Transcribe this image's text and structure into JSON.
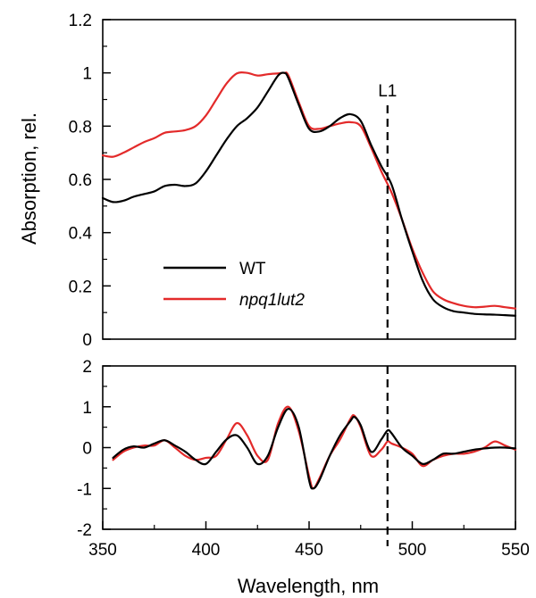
{
  "colors": {
    "wt": "#000000",
    "npq1lut2": "#e32a2a",
    "axis": "#000000"
  },
  "chart_data": [
    {
      "type": "line",
      "panel": "top",
      "title": "",
      "xlabel": "",
      "ylabel": "Absorption, rel.",
      "xlim": [
        350,
        550
      ],
      "ylim": [
        0,
        1.2
      ],
      "yticks": [
        "0",
        "0.2",
        "0.4",
        "0.6",
        "0.8",
        "1",
        "1.2"
      ],
      "legend": {
        "placement": "lower-left",
        "entries": [
          "WT",
          "npq1lut2"
        ]
      },
      "annotation": {
        "label": "L1",
        "x": 488,
        "style": "dashed vertical line"
      },
      "series": [
        {
          "name": "WT",
          "x": [
            350,
            355,
            360,
            365,
            370,
            375,
            380,
            385,
            390,
            395,
            400,
            405,
            410,
            415,
            420,
            425,
            430,
            435,
            438,
            440,
            445,
            450,
            455,
            460,
            465,
            470,
            475,
            480,
            485,
            490,
            495,
            500,
            505,
            510,
            515,
            520,
            525,
            530,
            535,
            540,
            545,
            550
          ],
          "y": [
            0.53,
            0.515,
            0.52,
            0.535,
            0.545,
            0.555,
            0.575,
            0.58,
            0.575,
            0.585,
            0.63,
            0.69,
            0.75,
            0.8,
            0.83,
            0.87,
            0.93,
            0.99,
            1.0,
            0.98,
            0.88,
            0.79,
            0.78,
            0.8,
            0.83,
            0.845,
            0.82,
            0.73,
            0.65,
            0.58,
            0.45,
            0.33,
            0.22,
            0.15,
            0.12,
            0.105,
            0.1,
            0.095,
            0.093,
            0.092,
            0.09,
            0.088
          ]
        },
        {
          "name": "npq1lut2",
          "x": [
            350,
            355,
            360,
            365,
            370,
            375,
            380,
            385,
            390,
            395,
            400,
            405,
            410,
            415,
            420,
            425,
            430,
            435,
            438,
            440,
            445,
            450,
            455,
            460,
            465,
            470,
            475,
            480,
            485,
            490,
            495,
            500,
            505,
            510,
            515,
            520,
            525,
            530,
            535,
            540,
            545,
            550
          ],
          "y": [
            0.69,
            0.685,
            0.7,
            0.72,
            0.74,
            0.755,
            0.775,
            0.78,
            0.785,
            0.8,
            0.84,
            0.9,
            0.96,
            0.998,
            1.0,
            0.99,
            0.995,
            0.998,
            1.0,
            0.99,
            0.89,
            0.8,
            0.79,
            0.8,
            0.81,
            0.815,
            0.8,
            0.72,
            0.63,
            0.55,
            0.45,
            0.34,
            0.25,
            0.18,
            0.15,
            0.135,
            0.125,
            0.12,
            0.122,
            0.125,
            0.12,
            0.115
          ]
        }
      ]
    },
    {
      "type": "line",
      "panel": "bottom",
      "title": "",
      "xlabel": "Wavelength, nm",
      "ylabel": "",
      "xlim": [
        350,
        550
      ],
      "ylim": [
        -2,
        2
      ],
      "yticks": [
        "-2",
        "-1",
        "0",
        "1",
        "2"
      ],
      "xticks": [
        "350",
        "400",
        "450",
        "500",
        "550"
      ],
      "series": [
        {
          "name": "WT",
          "x": [
            355,
            360,
            365,
            370,
            375,
            380,
            385,
            390,
            395,
            400,
            405,
            410,
            415,
            420,
            425,
            430,
            435,
            440,
            445,
            450,
            452,
            455,
            460,
            465,
            470,
            472,
            475,
            480,
            485,
            488,
            490,
            495,
            500,
            505,
            510,
            515,
            520,
            525,
            530,
            535,
            540,
            545,
            550
          ],
          "y": [
            -0.25,
            -0.05,
            0.03,
            0.0,
            0.1,
            0.18,
            0.05,
            -0.1,
            -0.3,
            -0.4,
            -0.1,
            0.2,
            0.3,
            0.0,
            -0.4,
            -0.2,
            0.5,
            0.95,
            0.5,
            -0.8,
            -1.0,
            -0.8,
            -0.2,
            0.3,
            0.65,
            0.75,
            0.55,
            -0.1,
            0.2,
            0.42,
            0.35,
            0.0,
            -0.2,
            -0.4,
            -0.3,
            -0.15,
            -0.15,
            -0.1,
            -0.05,
            -0.02,
            0.0,
            0.0,
            -0.02
          ]
        },
        {
          "name": "npq1lut2",
          "x": [
            355,
            360,
            365,
            370,
            375,
            380,
            385,
            390,
            395,
            400,
            405,
            410,
            415,
            420,
            425,
            430,
            435,
            440,
            445,
            450,
            452,
            455,
            460,
            465,
            470,
            472,
            475,
            480,
            485,
            488,
            490,
            495,
            500,
            505,
            510,
            515,
            520,
            525,
            530,
            535,
            540,
            545,
            550
          ],
          "y": [
            -0.3,
            -0.1,
            0.0,
            0.05,
            0.05,
            0.18,
            0.0,
            -0.2,
            -0.3,
            -0.25,
            -0.2,
            0.2,
            0.6,
            0.3,
            -0.2,
            -0.3,
            0.6,
            1.0,
            0.4,
            -0.7,
            -1.0,
            -0.75,
            -0.2,
            0.2,
            0.7,
            0.78,
            0.5,
            -0.2,
            -0.05,
            0.15,
            0.1,
            0.0,
            -0.15,
            -0.45,
            -0.3,
            -0.2,
            -0.15,
            -0.15,
            -0.1,
            0.0,
            0.15,
            0.05,
            -0.05
          ]
        }
      ]
    }
  ]
}
